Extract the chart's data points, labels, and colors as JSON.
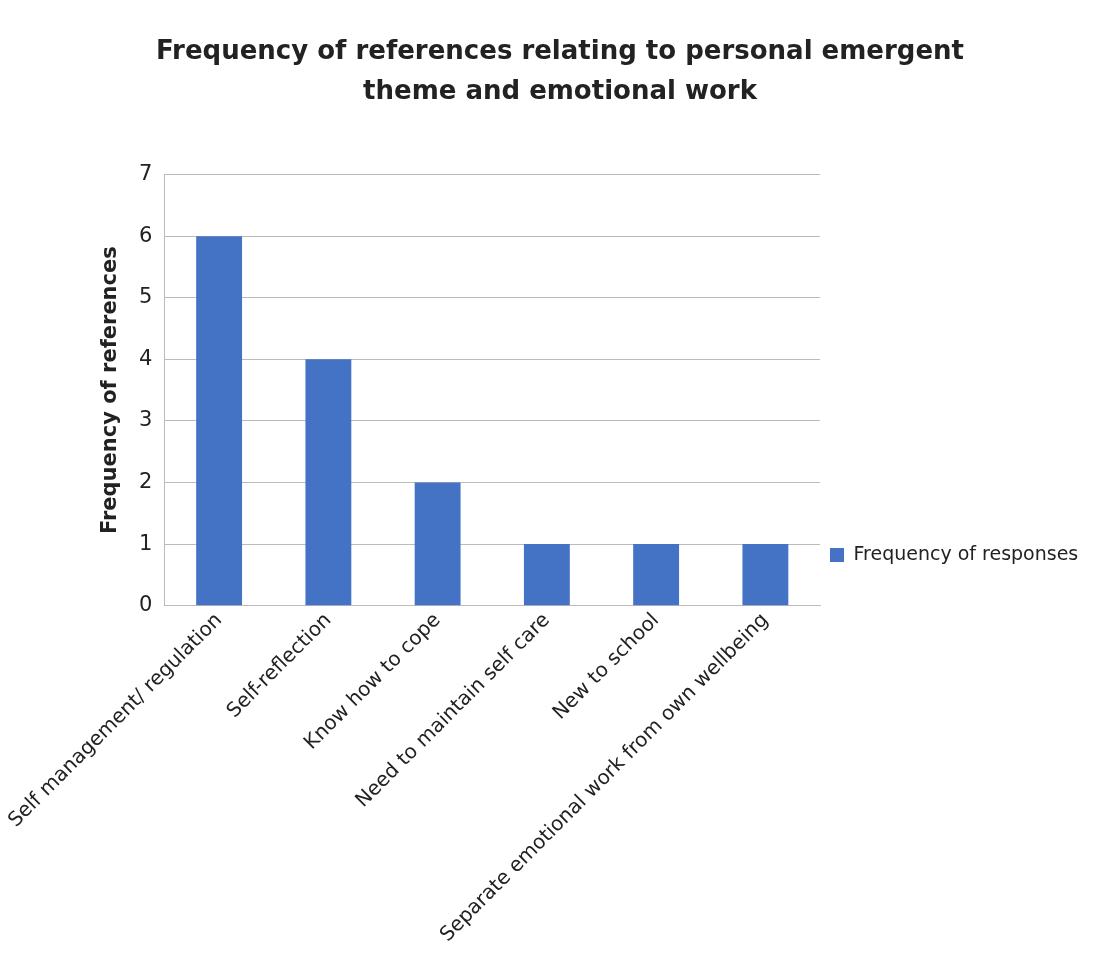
{
  "chart_data": {
    "type": "bar",
    "title": "Frequency of references relating to personal emergent theme and emotional work",
    "ylabel": "Frequency of references",
    "categories": [
      "Self management/ regulation",
      "Self-reflection",
      "Know how to cope",
      "Need to maintain self care",
      "New to school",
      "Separate emotional work from own wellbeing"
    ],
    "series": [
      {
        "name": "Frequency of responses",
        "color": "#4472c4",
        "values": [
          6,
          4,
          2,
          1,
          1,
          1
        ]
      }
    ],
    "ylim": [
      0,
      7
    ],
    "yticks": [
      0,
      1,
      2,
      3,
      4,
      5,
      6,
      7
    ],
    "grid": "y",
    "legend": "right"
  }
}
